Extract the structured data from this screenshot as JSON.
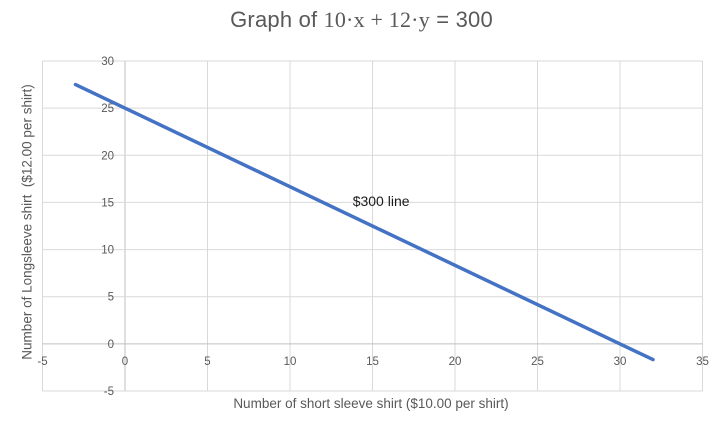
{
  "title": {
    "prefix": "Graph of ",
    "equation": "10·x + 12·y",
    "suffix": " = 300"
  },
  "chart_data": {
    "type": "line",
    "title": "Graph of 10·x + 12·y = 300",
    "xlabel": "Number of short sleeve shirt ($10.00 per shirt)",
    "ylabel": "Number of Longsleeve shirt  ($12.00 per shirt)",
    "equation": "10·x + 12·y = 300",
    "series": [
      {
        "name": "$300 line",
        "points": [
          [
            -3,
            27.5
          ],
          [
            32,
            -1.67
          ]
        ],
        "color": "#4472C4",
        "width": 3.5
      }
    ],
    "xlim": [
      -5,
      35
    ],
    "ylim": [
      -5,
      30
    ],
    "xticks": [
      -5,
      0,
      5,
      10,
      15,
      20,
      25,
      30,
      35
    ],
    "yticks": [
      -5,
      0,
      5,
      10,
      15,
      20,
      25,
      30
    ],
    "grid": true,
    "legend": "none",
    "annotation": {
      "text": "$300 line",
      "x": 13.8,
      "y": 14.6
    },
    "colors": {
      "line": "#4472C4",
      "grid": "#D9D9D9",
      "axis": "#BFBFBF",
      "text": "#595959",
      "annotation": "#1a1a1a",
      "background": "#ffffff"
    }
  }
}
